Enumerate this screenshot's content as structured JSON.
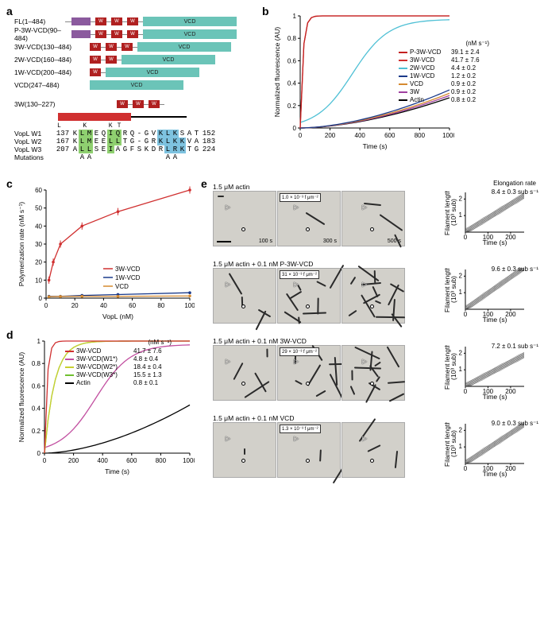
{
  "panels": {
    "a": "a",
    "b": "b",
    "c": "c",
    "d": "d",
    "e": "e"
  },
  "a": {
    "constructs": [
      {
        "label": "FL(1–484)",
        "line": 8,
        "p": 1,
        "w": 3,
        "gap_pre": 6,
        "vcd_w": 118,
        "vcd_text": "VCD"
      },
      {
        "label": "P-3W-VCD(90–484)",
        "line": 0,
        "p": 1,
        "w": 3,
        "gap_pre": 0,
        "vcd_w": 118,
        "vcd_text": "VCD"
      },
      {
        "label": "3W-VCD(130–484)",
        "line": 0,
        "p": 0,
        "w": 3,
        "gap_pre": 0,
        "vcd_w": 118,
        "vcd_text": "VCD"
      },
      {
        "label": "2W-VCD(160–484)",
        "line": 0,
        "p": 0,
        "w": 2,
        "gap_pre": 0,
        "vcd_w": 118,
        "vcd_text": "VCD"
      },
      {
        "label": "1W-VCD(200–484)",
        "line": 0,
        "p": 0,
        "w": 1,
        "gap_pre": 0,
        "vcd_w": 118,
        "vcd_text": "VCD"
      },
      {
        "label": "VCD(247–484)",
        "line": 0,
        "p": 0,
        "w": 0,
        "gap_pre": 0,
        "vcd_w": 118,
        "vcd_text": "VCD"
      }
    ],
    "construct_3w": {
      "label": "3W(130–227)",
      "w": 3
    },
    "align": {
      "lk": "L  K  KT",
      "rows": [
        {
          "name": "VopL W1",
          "start": "137",
          "seq": "KLMEQIQRQ-GVKLKSAT",
          "end": "152",
          "hl": {
            "1": "g",
            "2": "g",
            "5": "g",
            "6": "g",
            "12": "b",
            "13": "b",
            "14": "b"
          }
        },
        {
          "name": "VopL W2",
          "start": "167",
          "seq": "KLMEELLTG-GRKLKKVA",
          "end": "183",
          "hl": {
            "1": "g",
            "2": "g",
            "5": "g",
            "6": "g",
            "12": "b",
            "13": "b",
            "14": "b",
            "15": "b"
          }
        },
        {
          "name": "VopL W3",
          "start": "207",
          "seq": "ALLSEIAGFSKDRLRKTG",
          "end": "224",
          "hl": {
            "1": "g",
            "2": "g",
            "5": "g",
            "13": "b",
            "14": "b",
            "15": "b"
          }
        }
      ],
      "mutations": {
        "name": "Mutations",
        "marks": {
          "1": "A",
          "2": "A",
          "13": "A",
          "14": "A"
        }
      }
    }
  },
  "b": {
    "title": "Normalized fluorescence (AU)",
    "xlabel": "Time (s)",
    "xlim": [
      0,
      1000
    ],
    "xticks": [
      0,
      200,
      400,
      600,
      800,
      1000
    ],
    "ylim": [
      0,
      1.0
    ],
    "yticks": [
      0,
      0.2,
      0.4,
      0.6,
      0.8,
      1.0
    ],
    "rate_hdr": "(nM s⁻¹)",
    "series": [
      {
        "name": "P-3W-VCD",
        "color": "#c42020",
        "rate": "39.1 ± 2.4",
        "y_at_1000": 1.0,
        "shape": "fast"
      },
      {
        "name": "3W-VCD",
        "color": "#d03030ff",
        "rate": "41.7 ± 7.6",
        "y_at_1000": 1.0,
        "shape": "fast"
      },
      {
        "name": "2W-VCD",
        "color": "#4fc0d5",
        "rate": "4.4 ± 0.2",
        "y_at_1000": 0.97,
        "shape": "sigmoid"
      },
      {
        "name": "1W-VCD",
        "color": "#1a3a8a",
        "rate": "1.2 ± 0.2",
        "y_at_1000": 0.34,
        "shape": "slow"
      },
      {
        "name": "VCD",
        "color": "#d58a30",
        "rate": "0.9 ± 0.2",
        "y_at_1000": 0.31,
        "shape": "slow"
      },
      {
        "name": "3W",
        "color": "#a040a0",
        "rate": "0.9 ± 0.2",
        "y_at_1000": 0.29,
        "shape": "slow"
      },
      {
        "name": "Actin",
        "color": "#000000",
        "rate": "0.8 ± 0.2",
        "y_at_1000": 0.27,
        "shape": "slow"
      }
    ]
  },
  "c": {
    "title": "Polymerization rate (nM s⁻¹)",
    "xlabel": "VopL (nM)",
    "xlim": [
      0,
      100
    ],
    "xticks": [
      0,
      20,
      40,
      60,
      80,
      100
    ],
    "ylim": [
      0,
      60
    ],
    "yticks": [
      0,
      10,
      20,
      30,
      40,
      50,
      60
    ],
    "series": [
      {
        "name": "3W-VCD",
        "color": "#d03030",
        "points": [
          [
            2,
            10
          ],
          [
            5,
            20
          ],
          [
            10,
            30
          ],
          [
            25,
            40
          ],
          [
            50,
            48
          ],
          [
            100,
            60
          ]
        ]
      },
      {
        "name": "1W-VCD",
        "color": "#1a3a8a",
        "points": [
          [
            2,
            1
          ],
          [
            10,
            1
          ],
          [
            25,
            1.5
          ],
          [
            50,
            2
          ],
          [
            100,
            3
          ]
        ]
      },
      {
        "name": "VCD",
        "color": "#d58a30",
        "points": [
          [
            2,
            0.8
          ],
          [
            10,
            0.9
          ],
          [
            25,
            1
          ],
          [
            50,
            1
          ],
          [
            100,
            1.2
          ]
        ]
      }
    ]
  },
  "d": {
    "title": "Normalized fluorescence (AU)",
    "xlabel": "Time (s)",
    "xlim": [
      0,
      1000
    ],
    "xticks": [
      0,
      200,
      400,
      600,
      800,
      1000
    ],
    "ylim": [
      0,
      1.0
    ],
    "yticks": [
      0,
      0.2,
      0.4,
      0.6,
      0.8,
      1.0
    ],
    "rate_hdr": "(nM s⁻¹)",
    "series": [
      {
        "name": "3W-VCD",
        "color": "#d03030",
        "rate": "41.7 ± 7.6",
        "shape": "fast",
        "y_at_1000": 1.0
      },
      {
        "name": "3W-VCD(W1*)",
        "color": "#c24fa0",
        "rate": "4.8 ± 0.4",
        "shape": "sigmoid",
        "y_at_1000": 0.97
      },
      {
        "name": "3W-VCD(W2*)",
        "color": "#c8d030",
        "rate": "18.4 ± 0.4",
        "shape": "med",
        "y_at_1000": 1.0
      },
      {
        "name": "3W-VCD(W3*)",
        "color": "#70c030",
        "rate": "15.5 ± 1.3",
        "shape": "med",
        "y_at_1000": 1.0
      },
      {
        "name": "Actin",
        "color": "#000000",
        "rate": "0.8 ± 0.1",
        "shape": "slow",
        "y_at_1000": 0.43
      }
    ]
  },
  "e": {
    "er_title": "Elongation rate",
    "rows": [
      {
        "label": "1.5 μM actin",
        "density": "1.0 × 10⁻³ f μm⁻²",
        "rate": "8.4 ± 0.3 sub s⁻¹",
        "times": [
          "100 s",
          "300 s",
          "500 s"
        ],
        "n_fil": [
          1,
          2,
          3
        ]
      },
      {
        "label": "1.5 μM actin + 0.1 nM P-3W-VCD",
        "density": "31 × 10⁻³ f μm⁻²",
        "rate": "9.6 ± 0.3 sub s⁻¹",
        "times": [
          "",
          "",
          ""
        ],
        "n_fil": [
          4,
          9,
          14
        ]
      },
      {
        "label": "1.5 μM actin + 0.1 nM 3W-VCD",
        "density": "29 × 10⁻³ f μm⁻²",
        "rate": "7.2 ± 0.1 sub s⁻¹",
        "times": [
          "",
          "",
          ""
        ],
        "n_fil": [
          4,
          8,
          13
        ]
      },
      {
        "label": "1.5 μM actin + 0.1 nM VCD",
        "density": "1.3 × 10⁻³ f μm⁻²",
        "rate": "9.0 ± 0.3 sub s⁻¹",
        "times": [
          "",
          "",
          ""
        ],
        "n_fil": [
          1,
          2,
          3
        ]
      }
    ],
    "miniplot": {
      "xlabel": "Time (s)",
      "ylabel": "Filament length\n(10³ sub)",
      "xlim": [
        0,
        260
      ],
      "xticks": [
        0,
        100,
        200
      ],
      "ylim": [
        0,
        2.4
      ],
      "yticks": [
        1,
        2
      ]
    }
  },
  "colors": {
    "bg": "#ffffff"
  }
}
